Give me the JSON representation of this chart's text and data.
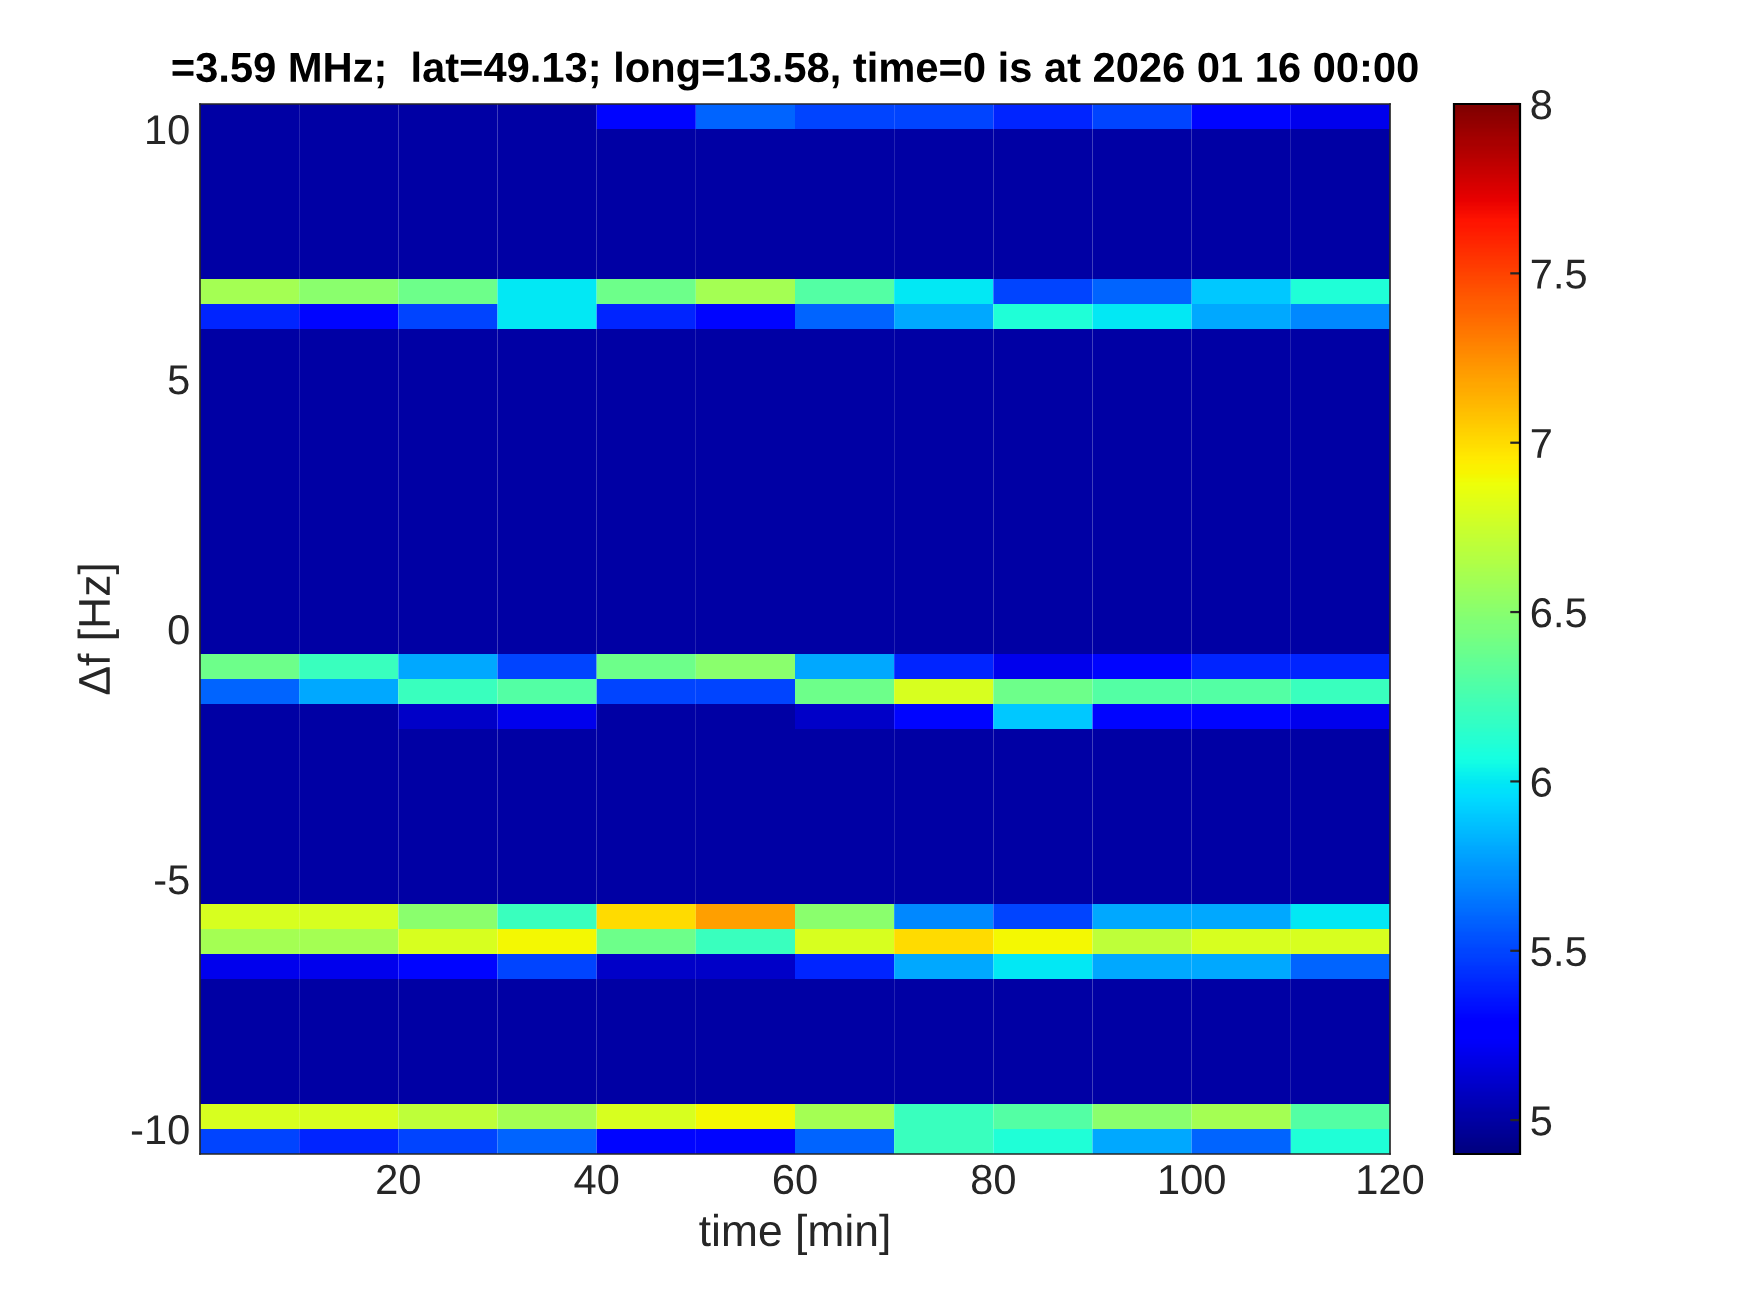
{
  "chart_data": {
    "type": "heatmap",
    "title": "=3.59 MHz;  lat=49.13; long=13.58, time=0 is at 2026 01 16 00:00",
    "xlabel": "time [min]",
    "ylabel": "Δf [Hz]",
    "x": [
      5,
      15,
      25,
      35,
      45,
      55,
      65,
      75,
      85,
      95,
      105,
      115
    ],
    "xlim": [
      0,
      120
    ],
    "xticks": [
      20,
      40,
      60,
      80,
      100,
      120
    ],
    "ylim": [
      -10.5,
      10.5
    ],
    "yticks": [
      -10,
      -5,
      0,
      5,
      10
    ],
    "clim": [
      4.9,
      8
    ],
    "cticks": [
      5,
      5.5,
      6,
      6.5,
      7,
      7.5,
      8
    ],
    "cells": [
      [
        5,
        5,
        5,
        5,
        5.3,
        5.6,
        5.5,
        5.5,
        5.4,
        5.5,
        5.3,
        5.2
      ],
      [
        5,
        5,
        5,
        5,
        5,
        5,
        5,
        5,
        5,
        5,
        5,
        5
      ],
      [
        5,
        5,
        5,
        5,
        5,
        5,
        5,
        5,
        5,
        5,
        5,
        5
      ],
      [
        5,
        5,
        5,
        5,
        5,
        5,
        5,
        5,
        5,
        5,
        5,
        5
      ],
      [
        5,
        5,
        5,
        5,
        5,
        5,
        5,
        5,
        5,
        5,
        5,
        5
      ],
      [
        5,
        5,
        5,
        5,
        5,
        5,
        5,
        5,
        5,
        5,
        5,
        5
      ],
      [
        5,
        5,
        5,
        5,
        5,
        5,
        5,
        5,
        5,
        5,
        5,
        5
      ],
      [
        6.6,
        6.5,
        6.4,
        6,
        6.4,
        6.6,
        6.3,
        6,
        5.5,
        5.6,
        5.9,
        6.1
      ],
      [
        5.4,
        5.3,
        5.5,
        6,
        5.4,
        5.3,
        5.6,
        5.8,
        6.1,
        6,
        5.8,
        5.7
      ],
      [
        5,
        5,
        5,
        5,
        5,
        5,
        5,
        5,
        5,
        5,
        5,
        5
      ],
      [
        5,
        5,
        5,
        5,
        5,
        5,
        5,
        5,
        5,
        5,
        5,
        5
      ],
      [
        5,
        5,
        5,
        5,
        5,
        5,
        5,
        5,
        5,
        5,
        5,
        5
      ],
      [
        5,
        5,
        5,
        5,
        5,
        5,
        5,
        5,
        5,
        5,
        5,
        5
      ],
      [
        5,
        5,
        5,
        5,
        5,
        5,
        5,
        5,
        5,
        5,
        5,
        5
      ],
      [
        5,
        5,
        5,
        5,
        5,
        5,
        5,
        5,
        5,
        5,
        5,
        5
      ],
      [
        5,
        5,
        5,
        5,
        5,
        5,
        5,
        5,
        5,
        5,
        5,
        5
      ],
      [
        5,
        5,
        5,
        5,
        5,
        5,
        5,
        5,
        5,
        5,
        5,
        5
      ],
      [
        5,
        5,
        5,
        5,
        5,
        5,
        5,
        5,
        5,
        5,
        5,
        5
      ],
      [
        5,
        5,
        5,
        5,
        5,
        5,
        5,
        5,
        5,
        5,
        5,
        5
      ],
      [
        5,
        5,
        5,
        5,
        5,
        5,
        5,
        5,
        5,
        5,
        5,
        5
      ],
      [
        5,
        5,
        5,
        5,
        5,
        5,
        5,
        5,
        5,
        5,
        5,
        5
      ],
      [
        5,
        5,
        5,
        5,
        5,
        5,
        5,
        5,
        5,
        5,
        5,
        5
      ],
      [
        6.4,
        6.2,
        5.8,
        5.5,
        6.4,
        6.5,
        5.8,
        5.4,
        5.2,
        5.3,
        5.4,
        5.4
      ],
      [
        5.6,
        5.8,
        6.2,
        6.3,
        5.5,
        5.5,
        6.4,
        6.8,
        6.4,
        6.3,
        6.3,
        6.2
      ],
      [
        5,
        5,
        5.1,
        5.2,
        5,
        5,
        5.1,
        5.3,
        5.9,
        5.3,
        5.3,
        5.2
      ],
      [
        5,
        5,
        5,
        5,
        5,
        5,
        5,
        5,
        5,
        5,
        5,
        5
      ],
      [
        5,
        5,
        5,
        5,
        5,
        5,
        5,
        5,
        5,
        5,
        5,
        5
      ],
      [
        5,
        5,
        5,
        5,
        5,
        5,
        5,
        5,
        5,
        5,
        5,
        5
      ],
      [
        5,
        5,
        5,
        5,
        5,
        5,
        5,
        5,
        5,
        5,
        5,
        5
      ],
      [
        5,
        5,
        5,
        5,
        5,
        5,
        5,
        5,
        5,
        5,
        5,
        5
      ],
      [
        5,
        5,
        5,
        5,
        5,
        5,
        5,
        5,
        5,
        5,
        5,
        5
      ],
      [
        5,
        5,
        5,
        5,
        5,
        5,
        5,
        5,
        5,
        5,
        5,
        5
      ],
      [
        6.8,
        6.8,
        6.5,
        6.2,
        7,
        7.2,
        6.5,
        5.7,
        5.5,
        5.8,
        5.8,
        6
      ],
      [
        6.6,
        6.6,
        6.8,
        6.9,
        6.4,
        6.2,
        6.8,
        7,
        6.9,
        6.7,
        6.8,
        6.8
      ],
      [
        5.2,
        5.2,
        5.3,
        5.5,
        5.1,
        5.1,
        5.4,
        5.8,
        6,
        5.8,
        5.8,
        5.6
      ],
      [
        5,
        5,
        5,
        5,
        5,
        5,
        5,
        5,
        5,
        5,
        5,
        5
      ],
      [
        5,
        5,
        5,
        5,
        5,
        5,
        5,
        5,
        5,
        5,
        5,
        5
      ],
      [
        5,
        5,
        5,
        5,
        5,
        5,
        5,
        5,
        5,
        5,
        5,
        5
      ],
      [
        5,
        5,
        5,
        5,
        5,
        5,
        5,
        5,
        5,
        5,
        5,
        5
      ],
      [
        5,
        5,
        5,
        5,
        5,
        5,
        5,
        5,
        5,
        5,
        5,
        5
      ],
      [
        6.8,
        6.8,
        6.7,
        6.6,
        6.8,
        6.9,
        6.6,
        6.2,
        6.3,
        6.5,
        6.6,
        6.3
      ],
      [
        5.5,
        5.4,
        5.5,
        5.6,
        5.3,
        5.3,
        5.6,
        6.2,
        6.1,
        5.8,
        5.6,
        6.1
      ]
    ]
  }
}
